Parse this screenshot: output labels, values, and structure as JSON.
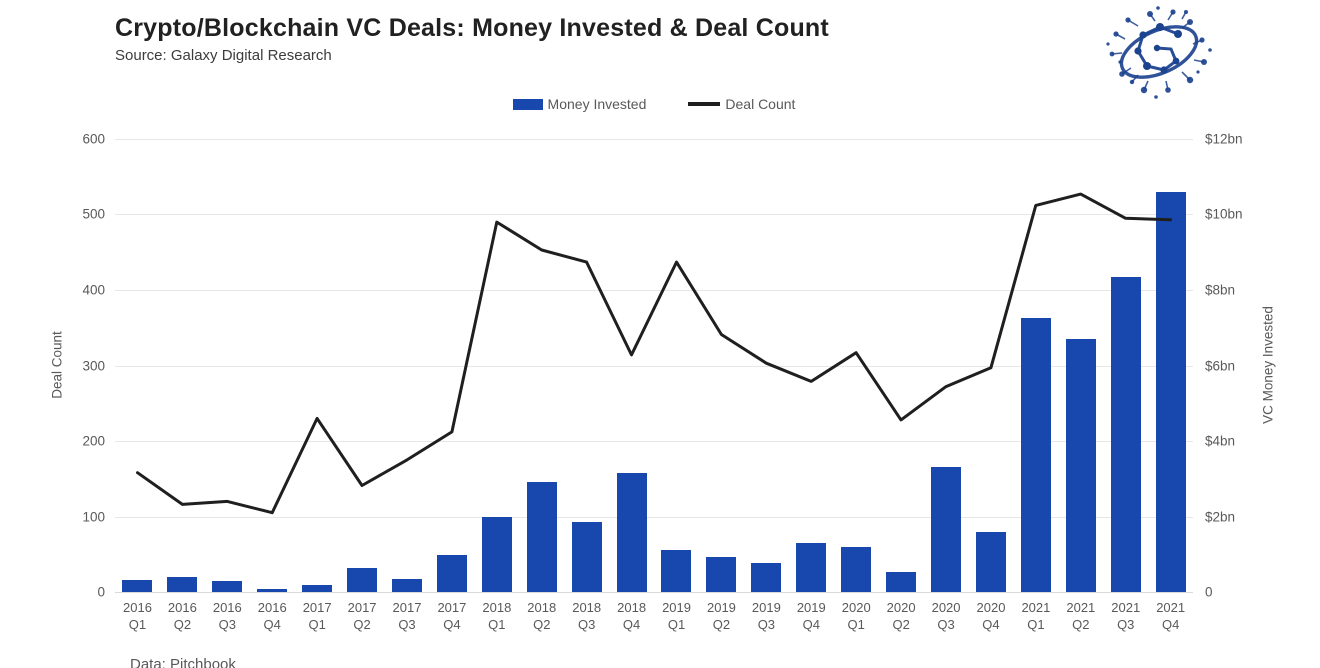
{
  "header": {
    "title": "Crypto/Blockchain VC Deals: Money Invested & Deal Count",
    "subtitle": "Source: Galaxy Digital Research"
  },
  "footer": {
    "caption": "Data: Pitchbook"
  },
  "colors": {
    "bar_blue": "#1847ae",
    "line_black": "#1f1f1f",
    "axis_text_gray": "#595959",
    "gridline_gray": "#e7e7e7",
    "title_dark": "#212121",
    "logo_blue": "#1d4390"
  },
  "chart_data": {
    "type": "bar",
    "subtype": "dual-axis combo (bars + line)",
    "title": "Crypto/Blockchain VC Deals: Money Invested & Deal Count",
    "grid": "horizontal only",
    "legend_position": "top center",
    "categories": [
      {
        "year": "2016",
        "quarter": "Q1"
      },
      {
        "year": "2016",
        "quarter": "Q2"
      },
      {
        "year": "2016",
        "quarter": "Q3"
      },
      {
        "year": "2016",
        "quarter": "Q4"
      },
      {
        "year": "2017",
        "quarter": "Q1"
      },
      {
        "year": "2017",
        "quarter": "Q2"
      },
      {
        "year": "2017",
        "quarter": "Q3"
      },
      {
        "year": "2017",
        "quarter": "Q4"
      },
      {
        "year": "2018",
        "quarter": "Q1"
      },
      {
        "year": "2018",
        "quarter": "Q2"
      },
      {
        "year": "2018",
        "quarter": "Q3"
      },
      {
        "year": "2018",
        "quarter": "Q4"
      },
      {
        "year": "2019",
        "quarter": "Q1"
      },
      {
        "year": "2019",
        "quarter": "Q2"
      },
      {
        "year": "2019",
        "quarter": "Q3"
      },
      {
        "year": "2019",
        "quarter": "Q4"
      },
      {
        "year": "2020",
        "quarter": "Q1"
      },
      {
        "year": "2020",
        "quarter": "Q2"
      },
      {
        "year": "2020",
        "quarter": "Q3"
      },
      {
        "year": "2020",
        "quarter": "Q4"
      },
      {
        "year": "2021",
        "quarter": "Q1"
      },
      {
        "year": "2021",
        "quarter": "Q2"
      },
      {
        "year": "2021",
        "quarter": "Q3"
      },
      {
        "year": "2021",
        "quarter": "Q4"
      }
    ],
    "series": [
      {
        "name": "Money Invested",
        "kind": "bar",
        "axis": "right",
        "unit": "$bn",
        "values": [
          0.32,
          0.41,
          0.3,
          0.08,
          0.19,
          0.64,
          0.35,
          0.98,
          2.0,
          2.92,
          1.86,
          3.16,
          1.12,
          0.93,
          0.78,
          1.3,
          1.18,
          0.52,
          3.32,
          1.6,
          7.25,
          6.7,
          8.35,
          10.6
        ]
      },
      {
        "name": "Deal Count",
        "kind": "line",
        "axis": "left",
        "unit": "deals",
        "values": [
          158,
          116,
          120,
          105,
          230,
          141,
          175,
          212,
          490,
          453,
          437,
          314,
          437,
          341,
          303,
          279,
          317,
          228,
          272,
          297,
          512,
          527,
          495,
          493
        ]
      }
    ],
    "left_axis": {
      "label": "Deal Count",
      "range": [
        0,
        600
      ],
      "ticks": [
        "600",
        "500",
        "400",
        "300",
        "200",
        "100",
        "0"
      ]
    },
    "right_axis": {
      "label": "VC Money Invested",
      "range": [
        0,
        12
      ],
      "ticks": [
        "$12bn",
        "$10bn",
        "$8bn",
        "$6bn",
        "$4bn",
        "$2bn",
        "0"
      ]
    }
  }
}
